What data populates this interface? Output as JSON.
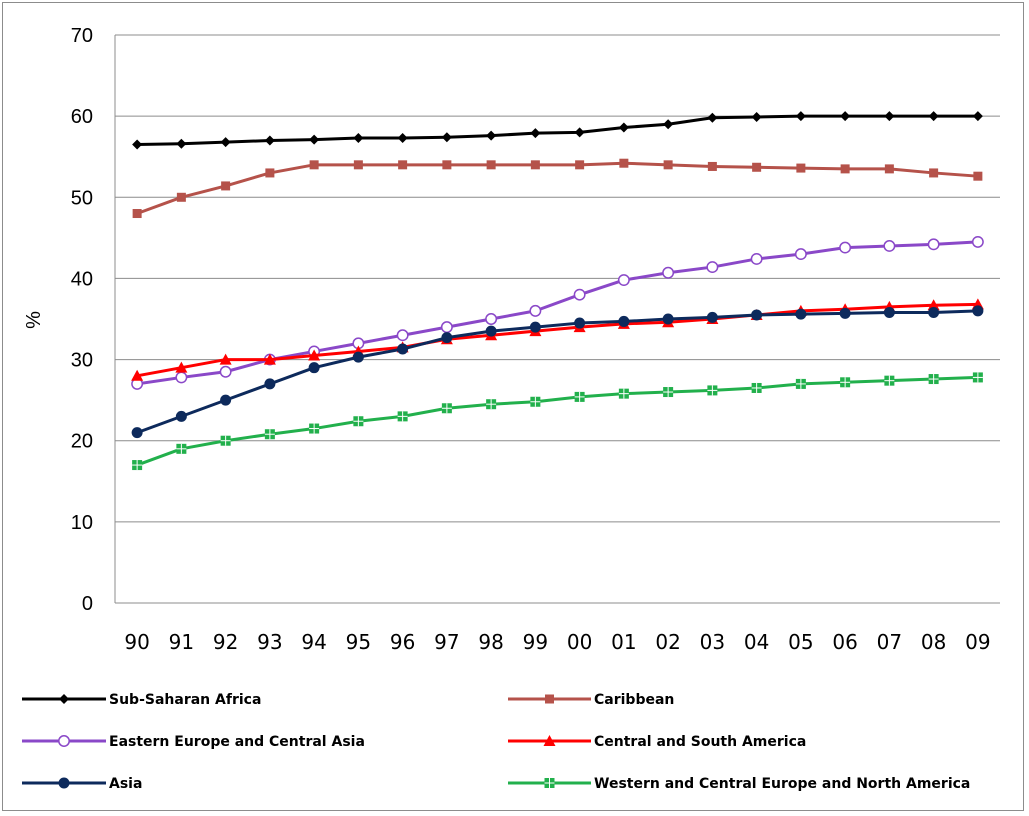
{
  "chart_data": {
    "type": "line",
    "title": "",
    "xlabel": "",
    "ylabel": "%",
    "ylim": [
      0,
      70
    ],
    "yticks": [
      "0",
      "10",
      "20",
      "30",
      "40",
      "50",
      "60",
      "70"
    ],
    "categories": [
      "90",
      "91",
      "92",
      "93",
      "94",
      "95",
      "96",
      "97",
      "98",
      "99",
      "00",
      "01",
      "02",
      "03",
      "04",
      "05",
      "06",
      "07",
      "08",
      "09"
    ],
    "grid": "horizontal",
    "legend_position": "bottom",
    "series": [
      {
        "name": "Sub-Saharan Africa",
        "color": "#000000",
        "marker": "diamond",
        "values": [
          56.5,
          56.6,
          56.8,
          57.0,
          57.1,
          57.3,
          57.3,
          57.4,
          57.6,
          57.9,
          58.0,
          58.6,
          59.0,
          59.8,
          59.9,
          60.0,
          60.0,
          60.0,
          60.0,
          60.0
        ]
      },
      {
        "name": "Caribbean",
        "color": "#b5524a",
        "marker": "square",
        "values": [
          48.0,
          50.0,
          51.4,
          53.0,
          54.0,
          54.0,
          54.0,
          54.0,
          54.0,
          54.0,
          54.0,
          54.2,
          54.0,
          53.8,
          53.7,
          53.6,
          53.5,
          53.5,
          53.0,
          52.6
        ]
      },
      {
        "name": "Eastern Europe and Central Asia",
        "color": "#8a48c8",
        "marker": "circle-open",
        "values": [
          27.0,
          27.8,
          28.5,
          30.0,
          31.0,
          32.0,
          33.0,
          34.0,
          35.0,
          36.0,
          38.0,
          39.8,
          40.7,
          41.4,
          42.4,
          43.0,
          43.8,
          44.0,
          44.2,
          44.5
        ]
      },
      {
        "name": "Central and South America",
        "color": "#ff0000",
        "marker": "triangle",
        "values": [
          28.0,
          29.0,
          30.0,
          30.0,
          30.5,
          31.0,
          31.5,
          32.5,
          33.0,
          33.5,
          34.0,
          34.4,
          34.6,
          35.0,
          35.5,
          36.0,
          36.2,
          36.5,
          36.7,
          36.8
        ]
      },
      {
        "name": "Asia",
        "color": "#0d2a5c",
        "marker": "circle",
        "values": [
          21.0,
          23.0,
          25.0,
          27.0,
          29.0,
          30.3,
          31.3,
          32.7,
          33.5,
          34.0,
          34.5,
          34.7,
          35.0,
          35.2,
          35.5,
          35.6,
          35.7,
          35.8,
          35.8,
          36.0
        ]
      },
      {
        "name": "Western and Central Europe and North America",
        "color": "#22b04c",
        "marker": "square-cross",
        "values": [
          17.0,
          19.0,
          20.0,
          20.8,
          21.5,
          22.4,
          23.0,
          24.0,
          24.5,
          24.8,
          25.4,
          25.8,
          26.0,
          26.2,
          26.5,
          27.0,
          27.2,
          27.4,
          27.6,
          27.8
        ]
      }
    ]
  }
}
